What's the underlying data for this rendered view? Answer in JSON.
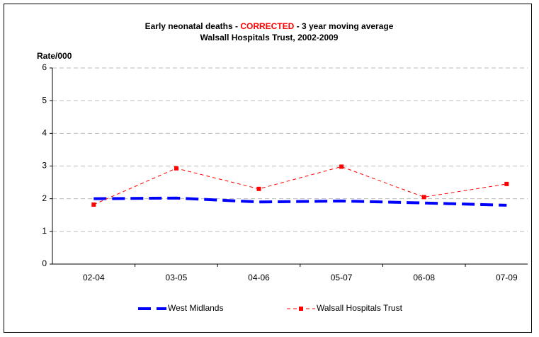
{
  "chart_data": {
    "type": "line",
    "title": [
      "Early neonatal deaths - ",
      "CORRECTED",
      " - 3 year moving average"
    ],
    "title_colors": [
      "#000000",
      "#ff0000",
      "#000000"
    ],
    "subtitle": "Walsall Hospitals Trust, 2002-2009",
    "y_label": "Rate/000",
    "categories": [
      "02-04",
      "03-05",
      "04-06",
      "05-07",
      "06-08",
      "07-09"
    ],
    "series": [
      {
        "name": "West Midlands",
        "color": "#0000ff",
        "values": [
          2.0,
          2.02,
          1.9,
          1.93,
          1.87,
          1.8
        ]
      },
      {
        "name": "Walsall Hospitals Trust",
        "color": "#ff0000",
        "values": [
          1.82,
          2.93,
          2.3,
          2.98,
          2.05,
          2.45
        ]
      }
    ],
    "ylim": [
      0,
      6
    ],
    "yticks": [
      0,
      1,
      2,
      3,
      4,
      5,
      6
    ],
    "grid": true
  }
}
